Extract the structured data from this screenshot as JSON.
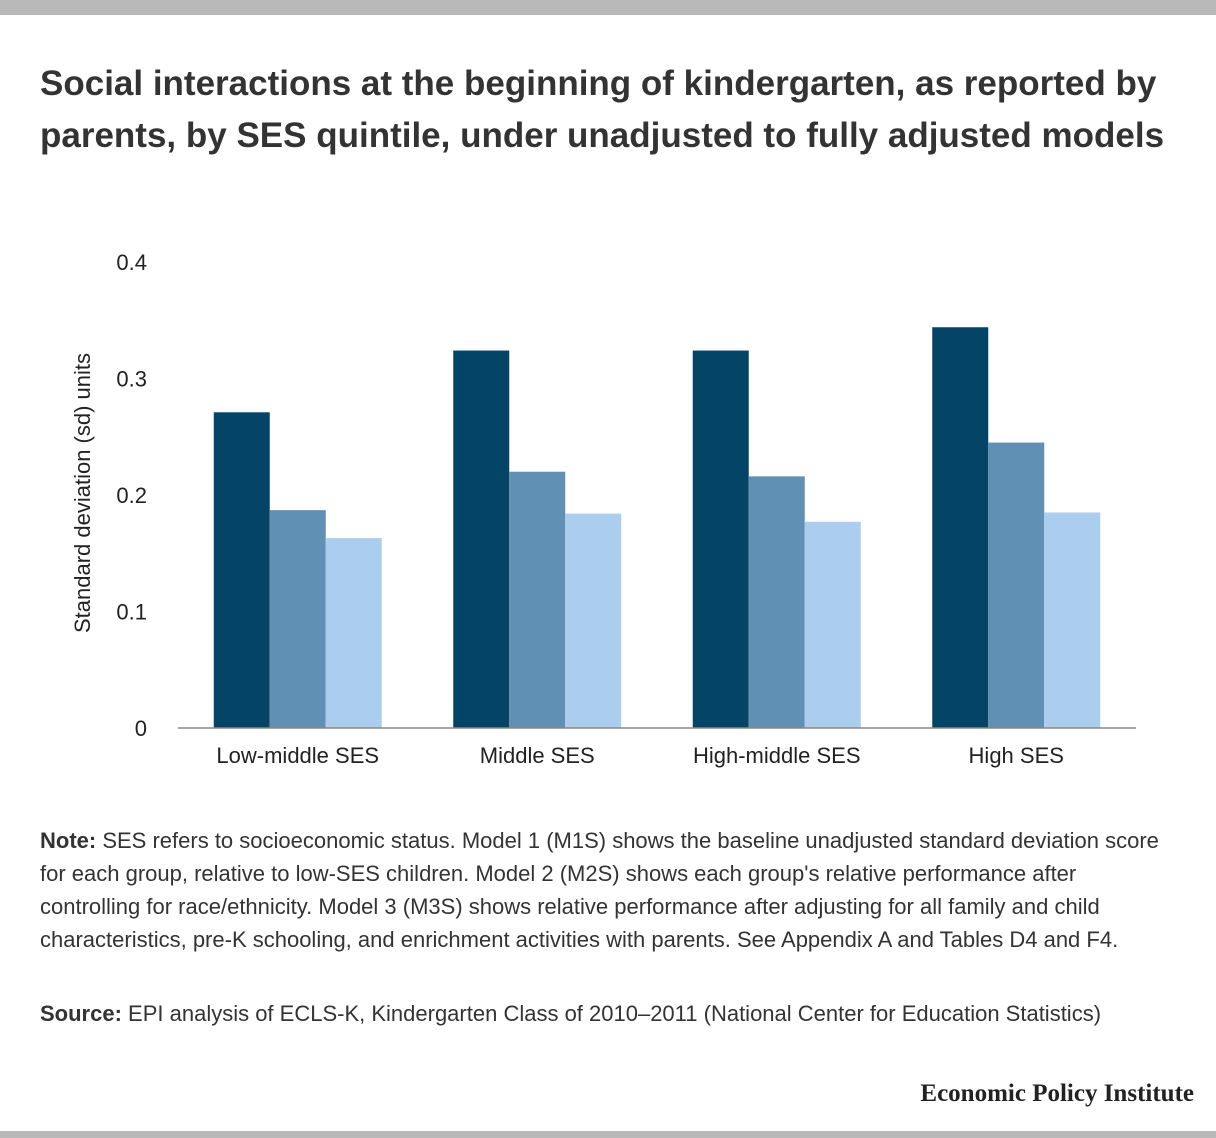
{
  "title": "Social interactions at the beginning of kindergarten, as reported by parents, by SES quintile, under unadjusted to fully adjusted models",
  "colors": {
    "m1": "#044567",
    "m2": "#6091b4",
    "m3": "#abcdee",
    "axis": "#888888",
    "bars_bg": "#b9b9b9"
  },
  "chart_data": {
    "type": "bar",
    "title": "Social interactions at the beginning of kindergarten, as reported by parents, by SES quintile, under unadjusted to fully adjusted models",
    "xlabel": "",
    "ylabel": "Standard deviation (sd) units",
    "categories": [
      "Low-middle SES",
      "Middle SES",
      "High-middle SES",
      "High SES"
    ],
    "series": [
      {
        "values": [
          0.271,
          0.324,
          0.324,
          0.344
        ],
        "color": "#044567"
      },
      {
        "values": [
          0.187,
          0.22,
          0.216,
          0.245
        ],
        "color": "#6091b4"
      },
      {
        "values": [
          0.163,
          0.184,
          0.177,
          0.185
        ],
        "color": "#abcdee"
      }
    ],
    "ylim": [
      0,
      0.4
    ],
    "yticks": [
      "0",
      "0.1",
      "0.2",
      "0.3",
      "0.4"
    ],
    "grid": false,
    "legend": "none"
  },
  "note": {
    "label": "Note:",
    "text": " SES refers to socioeconomic status. Model 1 (M1S) shows the baseline unadjusted standard deviation score for each group, relative to low-SES children. Model 2 (M2S) shows each group's relative performance after controlling for race/ethnicity. Model 3 (M3S) shows relative performance after adjusting for all family and child characteristics, pre-K schooling, and enrichment activities with parents. See Appendix A and Tables D4 and F4."
  },
  "source": {
    "label": "Source:",
    "text": " EPI analysis of ECLS-K, Kindergarten Class of 2010–2011 (National Center for Education Statistics)"
  },
  "brand": "Economic Policy Institute"
}
